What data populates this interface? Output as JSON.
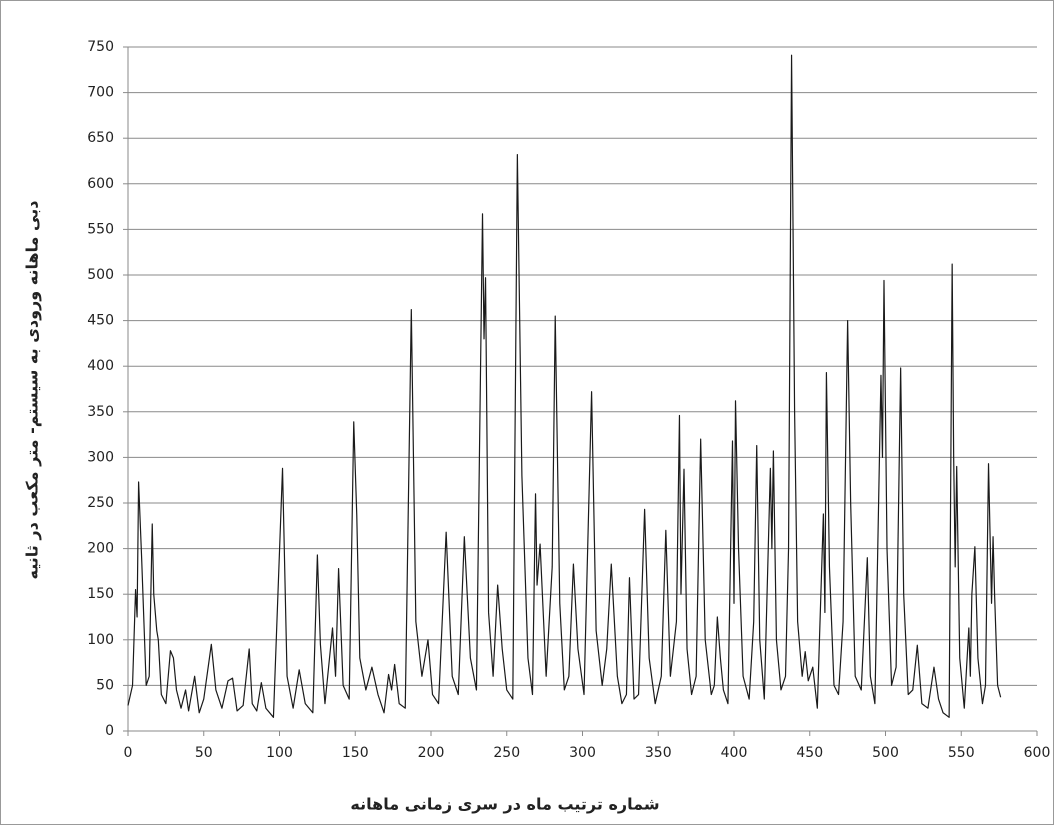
{
  "chart_data": {
    "type": "line",
    "ylabel": "دبی ماهانه ورودی به سیستم- متر مکعب در ثانیه",
    "xlabel": "شماره ترتیب ماه در سری زمانی ماهانه",
    "color": "#1a1a1a",
    "grid": true,
    "xlim": [
      0,
      600
    ],
    "xticks": [
      0,
      50,
      100,
      150,
      200,
      250,
      300,
      350,
      400,
      450,
      500,
      550,
      600
    ],
    "ylim": [
      0,
      750
    ],
    "yticks": [
      0,
      50,
      100,
      150,
      200,
      250,
      300,
      350,
      400,
      450,
      500,
      550,
      600,
      650,
      700,
      750
    ],
    "x": [
      0,
      3,
      5,
      6,
      7,
      9,
      12,
      14,
      16,
      17,
      19,
      20,
      22,
      25,
      28,
      30,
      32,
      35,
      38,
      40,
      44,
      47,
      50,
      55,
      58,
      62,
      66,
      69,
      72,
      76,
      80,
      82,
      85,
      88,
      91,
      96,
      102,
      105,
      109,
      113,
      117,
      122,
      125,
      127,
      130,
      135,
      137,
      139,
      142,
      146,
      149,
      151,
      153,
      157,
      161,
      165,
      169,
      172,
      174,
      176,
      179,
      183,
      187,
      190,
      194,
      198,
      201,
      205,
      210,
      214,
      218,
      222,
      226,
      230,
      234,
      235,
      236,
      238,
      241,
      244,
      247,
      250,
      254,
      257,
      260,
      264,
      267,
      269,
      270,
      272,
      276,
      280,
      282,
      285,
      288,
      291,
      294,
      297,
      301,
      306,
      309,
      313,
      316,
      319,
      323,
      326,
      329,
      331,
      334,
      337,
      341,
      344,
      348,
      352,
      355,
      358,
      362,
      364,
      365,
      367,
      369,
      372,
      375,
      378,
      381,
      385,
      387,
      389,
      391,
      393,
      396,
      399,
      400,
      401,
      403,
      406,
      410,
      413,
      415,
      417,
      420,
      424,
      425,
      426,
      428,
      431,
      434,
      436,
      438,
      440,
      442,
      445,
      447,
      449,
      452,
      455,
      459,
      460,
      461,
      463,
      466,
      469,
      472,
      475,
      477,
      480,
      484,
      488,
      490,
      493,
      497,
      498,
      499,
      501,
      504,
      507,
      510,
      512,
      515,
      518,
      521,
      524,
      528,
      532,
      535,
      538,
      542,
      544,
      545,
      546,
      547,
      549,
      552,
      555,
      556,
      557,
      559,
      561,
      564,
      566,
      568,
      570,
      571,
      572,
      574,
      576
    ],
    "values": [
      28,
      50,
      155,
      125,
      273,
      190,
      50,
      60,
      227,
      150,
      110,
      100,
      40,
      30,
      88,
      80,
      45,
      25,
      45,
      22,
      60,
      20,
      35,
      95,
      45,
      25,
      55,
      58,
      22,
      28,
      90,
      30,
      22,
      53,
      25,
      15,
      288,
      60,
      25,
      67,
      30,
      20,
      193,
      95,
      30,
      113,
      60,
      178,
      50,
      35,
      339,
      237,
      80,
      45,
      70,
      40,
      20,
      62,
      45,
      73,
      30,
      25,
      462,
      120,
      60,
      100,
      40,
      30,
      218,
      60,
      40,
      213,
      80,
      45,
      567,
      430,
      497,
      130,
      60,
      160,
      90,
      45,
      35,
      632,
      280,
      80,
      40,
      260,
      160,
      205,
      60,
      180,
      455,
      140,
      45,
      60,
      183,
      90,
      40,
      372,
      110,
      50,
      90,
      183,
      60,
      30,
      40,
      168,
      35,
      40,
      243,
      80,
      30,
      60,
      220,
      60,
      120,
      346,
      150,
      287,
      90,
      40,
      60,
      320,
      100,
      40,
      50,
      125,
      80,
      45,
      30,
      318,
      140,
      362,
      200,
      60,
      35,
      120,
      313,
      100,
      35,
      288,
      200,
      307,
      100,
      45,
      60,
      200,
      741,
      350,
      120,
      60,
      87,
      55,
      70,
      25,
      238,
      130,
      393,
      180,
      50,
      40,
      120,
      450,
      250,
      60,
      45,
      190,
      60,
      30,
      390,
      300,
      494,
      200,
      50,
      70,
      398,
      150,
      40,
      45,
      94,
      30,
      25,
      70,
      35,
      20,
      15,
      512,
      300,
      180,
      290,
      80,
      25,
      113,
      60,
      150,
      202,
      80,
      30,
      50,
      293,
      140,
      213,
      150,
      50,
      37
    ]
  }
}
